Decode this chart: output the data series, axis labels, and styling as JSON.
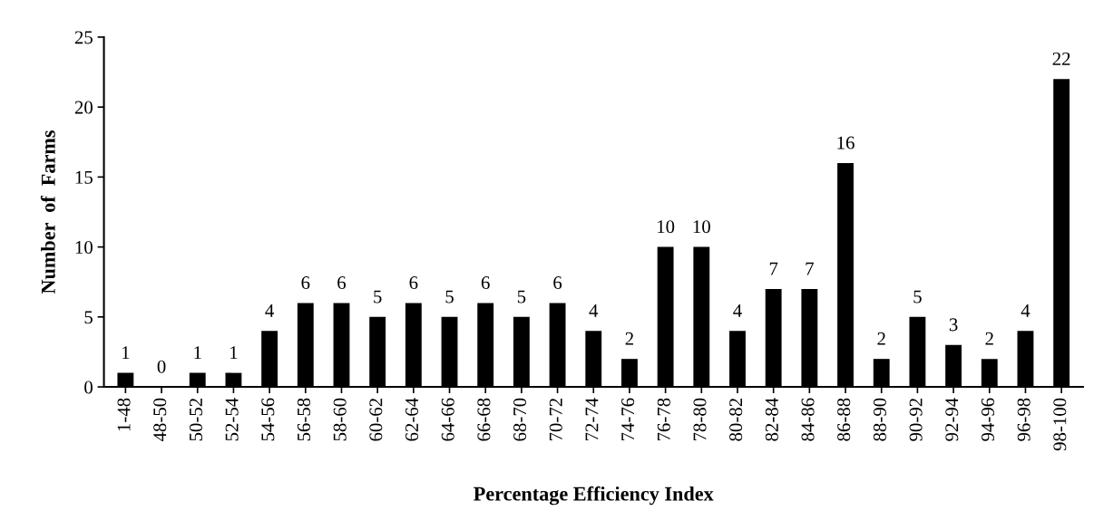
{
  "chart_data": {
    "type": "bar",
    "xlabel": "Percentage Efficiency Index",
    "ylabel": "Number  of  Farms",
    "categories": [
      "1-48",
      "48-50",
      "50-52",
      "52-54",
      "54-56",
      "56-58",
      "58-60",
      "60-62",
      "62-64",
      "64-66",
      "66-68",
      "68-70",
      "70-72",
      "72-74",
      "74-76",
      "76-78",
      "78-80",
      "80-82",
      "82-84",
      "84-86",
      "86-88",
      "88-90",
      "90-92",
      "92-94",
      "94-96",
      "96-98",
      "98-100"
    ],
    "values": [
      1,
      0,
      1,
      1,
      4,
      6,
      6,
      5,
      6,
      5,
      6,
      5,
      6,
      4,
      2,
      10,
      10,
      4,
      7,
      7,
      16,
      2,
      5,
      3,
      2,
      4,
      22
    ],
    "color": "#000000",
    "ylim": [
      0,
      25
    ],
    "yticks": [
      0,
      5,
      10,
      15,
      20,
      25
    ],
    "data_labels": true,
    "grid": false,
    "legend": false
  }
}
